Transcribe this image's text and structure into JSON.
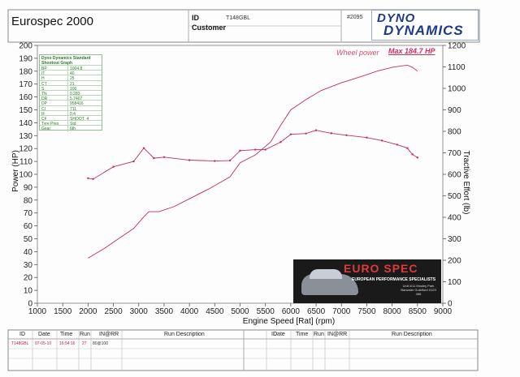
{
  "header": {
    "title": "Eurospec 2000",
    "id_label": "ID",
    "id_value": "T148GBL",
    "customer_label": "Customer",
    "run_no": "#2095",
    "logo_line1": "DYNO",
    "logo_line2": "DYNAMICS"
  },
  "legend_box": {
    "heading": "Dyno Dynamics Standard Shootout Graph",
    "rows": [
      {
        "k": "BP",
        "v": "1004.8"
      },
      {
        "k": "IT",
        "v": "40"
      },
      {
        "k": "H",
        "v": "25"
      },
      {
        "k": "CT",
        "v": "21"
      },
      {
        "k": "S",
        "v": "100"
      },
      {
        "k": "TN",
        "v": "0.283"
      },
      {
        "k": "DR",
        "v": "5.7407"
      },
      {
        "k": "DP",
        "v": "958416"
      },
      {
        "k": "CI",
        "v": "711"
      },
      {
        "k": "IF",
        "v": "0.4"
      },
      {
        "k": "CF",
        "v": "SHOOT_4"
      },
      {
        "k": "Tyre Pres",
        "v": "Std"
      },
      {
        "k": "Gear",
        "v": "6th"
      }
    ]
  },
  "banner": {
    "brand": "EURO SPEC",
    "tagline": "EUROPEAN PERFORMANCE SPECIALISTS",
    "address": "Unit 4/11 Mosley Park Barwater Guildford 0123 456"
  },
  "table": {
    "headers": [
      "ID",
      "Date",
      "Time",
      "Run",
      "IN@RR",
      "Run Description"
    ],
    "row": {
      "id": "T148GBL",
      "date": "07-05-10",
      "time": "16:54:16",
      "run": "27",
      "inrr": "80@100",
      "desc": ""
    }
  },
  "chart_data": {
    "type": "line",
    "xlabel": "Engine Speed [Rat] (rpm)",
    "ylabel": "Power (HP)",
    "y2label": "Tractive Effort (lb)",
    "xlim": [
      1000,
      9000
    ],
    "ylim": [
      0,
      200
    ],
    "y2lim": [
      0,
      1200
    ],
    "x_ticks": [
      1000,
      1500,
      2000,
      2500,
      3000,
      3500,
      4000,
      4500,
      5000,
      5500,
      6000,
      6500,
      7000,
      7500,
      8000,
      8500,
      9000
    ],
    "y_ticks": [
      0,
      10,
      20,
      30,
      40,
      50,
      60,
      70,
      80,
      90,
      100,
      110,
      120,
      130,
      140,
      150,
      160,
      170,
      180,
      190,
      200
    ],
    "y2_ticks": [
      0,
      100,
      200,
      300,
      400,
      500,
      600,
      700,
      800,
      900,
      1000,
      1100,
      1200
    ],
    "grid": false,
    "annotation_label": "Wheel power",
    "annotation_value": "Max 184.7 HP",
    "series": [
      {
        "axis": "left",
        "color": "#c0305a",
        "x": [
          2000,
          2300,
          2600,
          2900,
          3100,
          3200,
          3400,
          3700,
          4000,
          4400,
          4800,
          5000,
          5300,
          5600,
          5800,
          6000,
          6300,
          6600,
          7000,
          7400,
          7700,
          8000,
          8300,
          8400,
          8500
        ],
        "values": [
          35,
          42,
          50,
          58,
          67,
          71,
          71,
          75,
          81,
          89,
          98,
          109,
          115,
          125,
          138,
          150,
          158,
          165,
          171,
          176,
          180,
          183,
          184.7,
          183,
          180
        ],
        "markers": false
      },
      {
        "axis": "right",
        "color": "#c0305a",
        "x": [
          2000,
          2100,
          2500,
          2900,
          3100,
          3300,
          3500,
          4000,
          4500,
          4800,
          5000,
          5300,
          5500,
          5800,
          6000,
          6300,
          6500,
          6800,
          7100,
          7500,
          7800,
          8100,
          8300,
          8400,
          8500
        ],
        "values": [
          582,
          578,
          635,
          660,
          722,
          675,
          680,
          666,
          662,
          664,
          710,
          715,
          715,
          750,
          786,
          790,
          805,
          791,
          782,
          771,
          757,
          738,
          722,
          693,
          678
        ],
        "markers": true
      }
    ]
  }
}
